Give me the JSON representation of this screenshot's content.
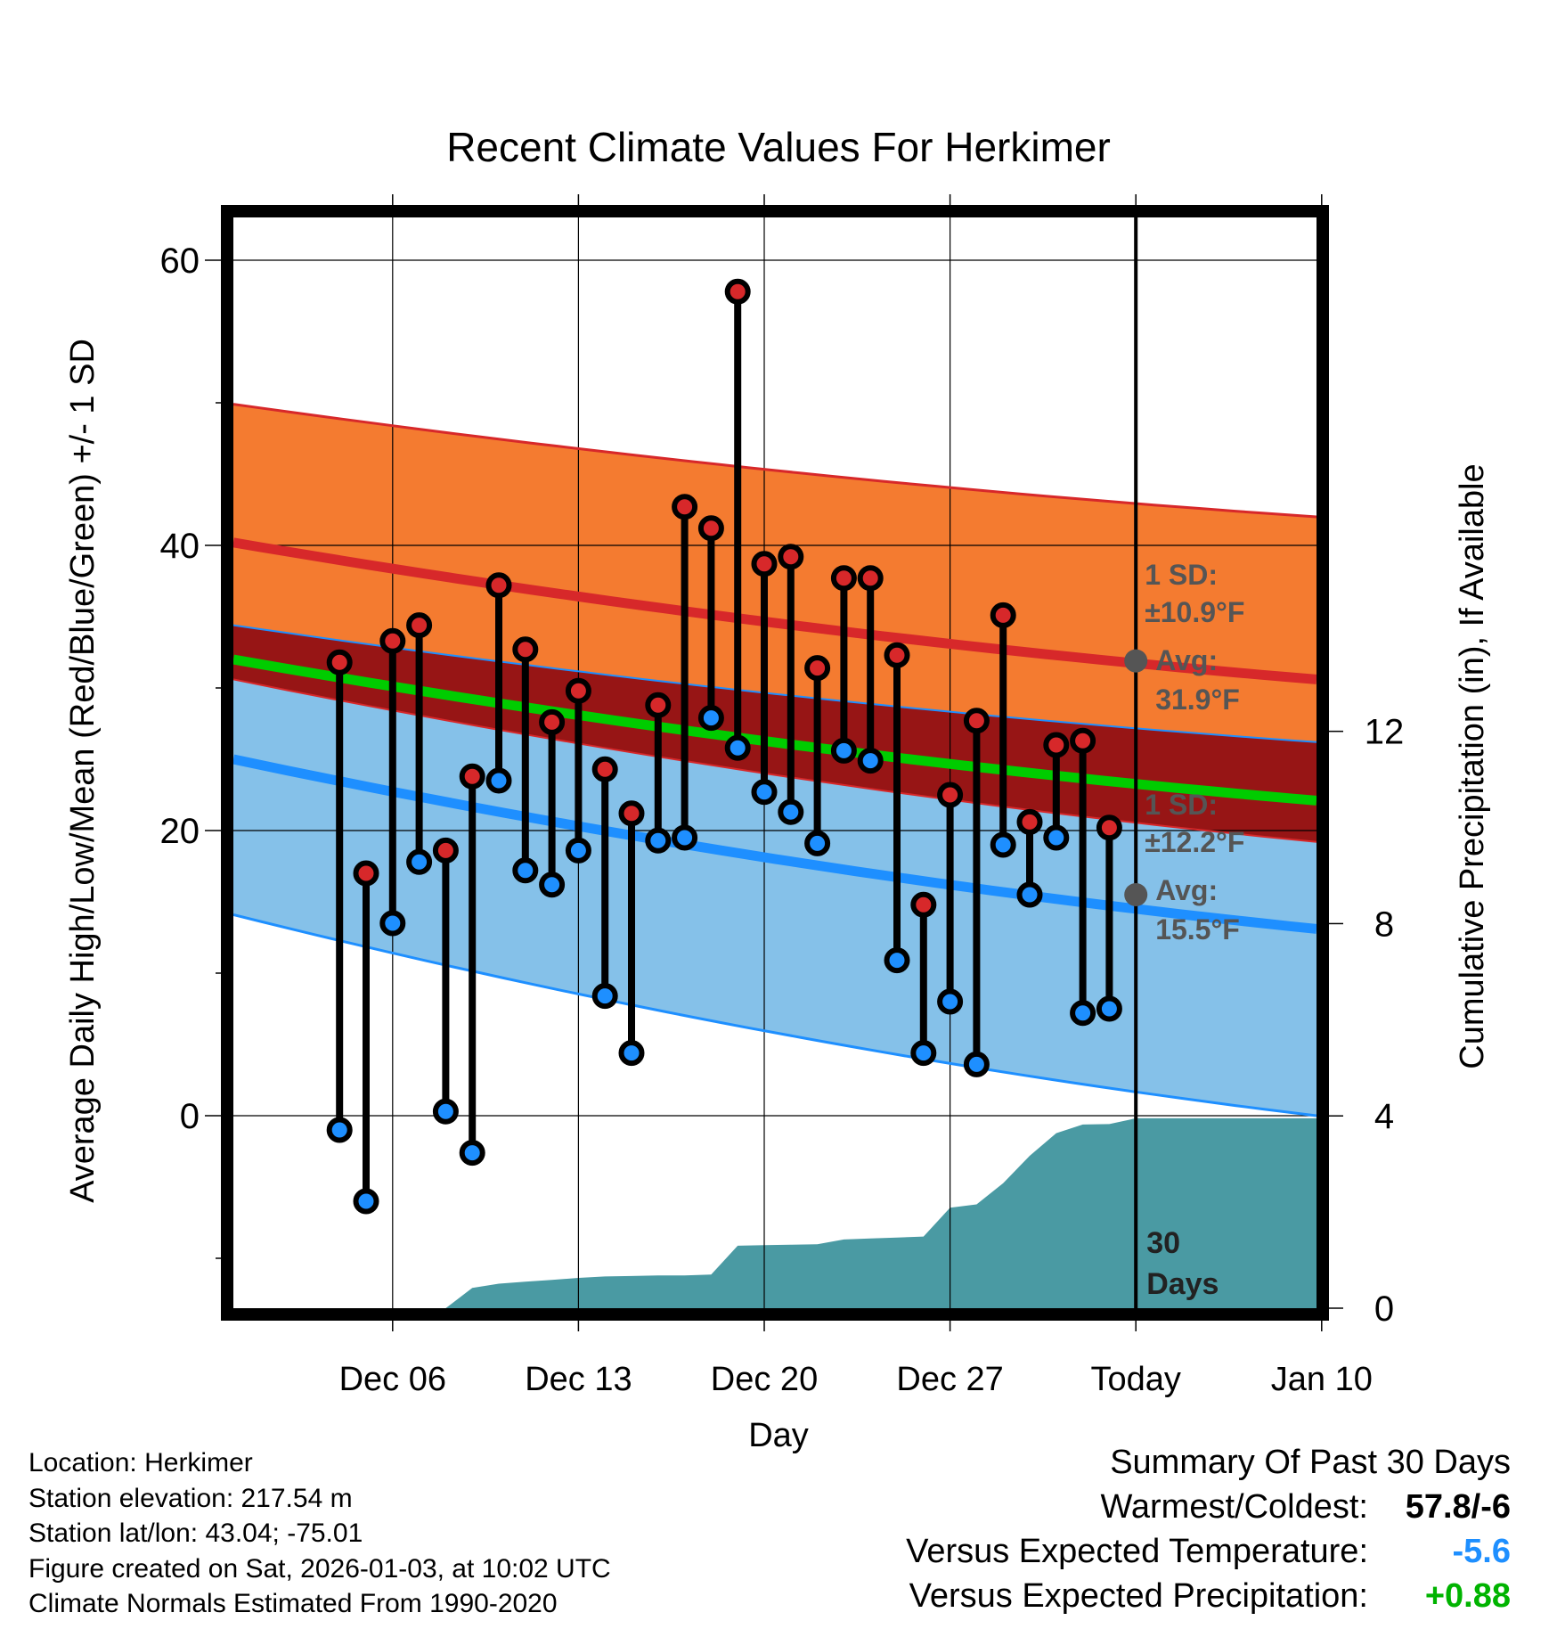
{
  "title": "Recent Climate Values For Herkimer",
  "footer": {
    "location": "Location: Herkimer",
    "elevation": "Station elevation: 217.54 m",
    "latlon": "Station lat/lon: 43.04; -75.01",
    "created": "Figure created on Sat, 2026-01-03, at 10:02 UTC",
    "normals": "Climate Normals Estimated From 1990-2020"
  },
  "summary": {
    "heading": "Summary Of Past 30 Days",
    "warmest_coldest_label": "Warmest/Coldest:",
    "warmest_coldest_value": "57.8/-6",
    "temp_label": "Versus Expected Temperature:",
    "temp_value": "-5.6",
    "temp_color": "#1e8fff",
    "precip_label": "Versus Expected Precipitation:",
    "precip_value": "+0.88",
    "precip_color": "#00b300"
  },
  "chart_data": {
    "type": "line",
    "xlabel": "Day",
    "ylabel": "Average Daily High/Low/Mean (Red/Blue/Green) +/- 1 SD",
    "y2label": "Cumulative Precipitation (in), If Available",
    "ylim": [
      -13.5,
      63
    ],
    "y2lim": [
      0,
      22.69
    ],
    "xlim": [
      -32,
      9
    ],
    "xticks": [
      {
        "day": -26,
        "label": "Dec 06"
      },
      {
        "day": -19,
        "label": "Dec 13"
      },
      {
        "day": -12,
        "label": "Dec 20"
      },
      {
        "day": -5,
        "label": "Dec 27"
      },
      {
        "day": 2,
        "label": "Today"
      },
      {
        "day": 9,
        "label": "Jan 10"
      }
    ],
    "today_day": 2,
    "yticks": [
      0,
      20,
      40,
      60
    ],
    "y2ticks": [
      0,
      4,
      8,
      12
    ],
    "high_normal": {
      "start": 40.2,
      "end": 30.6
    },
    "high_sd_upper": {
      "start": 49.9,
      "end": 42.0
    },
    "high_sd_lower": {
      "start": 34.4,
      "end": 26.2
    },
    "low_normal": {
      "start": 25.0,
      "end": 13.1
    },
    "low_sd_upper": {
      "start": 30.6,
      "end": 19.2
    },
    "low_sd_lower": {
      "start": 14.1,
      "end": 0.0
    },
    "mean_normal": {
      "start": 32.0,
      "end": 22.1
    },
    "annotations": [
      {
        "lines": [
          "1 SD:",
          "±10.9°F",
          "Avg:",
          "31.9°F"
        ],
        "marker_value": 31.9
      },
      {
        "lines": [
          "1 SD:",
          "±12.2°F",
          "Avg:",
          "15.5°F"
        ],
        "marker_value": 15.5
      }
    ],
    "days_label": [
      "30",
      "Days"
    ],
    "daily": {
      "high": [
        31.8,
        17.0,
        33.3,
        34.4,
        18.6,
        23.8,
        37.2,
        32.7,
        27.6,
        29.8,
        24.3,
        21.2,
        28.8,
        42.7,
        41.2,
        57.8,
        38.7,
        39.2,
        31.4,
        37.7,
        37.7,
        32.3,
        14.8,
        22.5,
        27.7,
        35.1,
        20.6,
        26.0,
        26.3,
        20.2
      ],
      "low": [
        -1.0,
        -6.0,
        13.5,
        17.8,
        0.3,
        -2.6,
        23.5,
        17.2,
        16.2,
        18.6,
        8.4,
        4.4,
        19.3,
        19.5,
        27.9,
        25.8,
        22.7,
        21.3,
        19.1,
        25.6,
        24.9,
        10.9,
        4.4,
        8.0,
        3.6,
        19.0,
        15.5,
        19.5,
        7.2,
        7.5
      ]
    },
    "precip_cumulative": [
      [
        -28,
        0.0
      ],
      [
        -27,
        0.0
      ],
      [
        -26,
        0.0
      ],
      [
        -25,
        0.0
      ],
      [
        -24,
        0.0
      ],
      [
        -23,
        0.42
      ],
      [
        -22,
        0.51
      ],
      [
        -21,
        0.55
      ],
      [
        -20,
        0.59
      ],
      [
        -19,
        0.63
      ],
      [
        -18,
        0.66
      ],
      [
        -17,
        0.67
      ],
      [
        -16,
        0.68
      ],
      [
        -15,
        0.68
      ],
      [
        -14,
        0.7
      ],
      [
        -13,
        1.3
      ],
      [
        -12,
        1.31
      ],
      [
        -11,
        1.32
      ],
      [
        -10,
        1.33
      ],
      [
        -9,
        1.43
      ],
      [
        -8,
        1.45
      ],
      [
        -7,
        1.47
      ],
      [
        -6,
        1.49
      ],
      [
        -5,
        2.09
      ],
      [
        -4,
        2.16
      ],
      [
        -3,
        2.6
      ],
      [
        -2,
        3.17
      ],
      [
        -1,
        3.64
      ],
      [
        0,
        3.82
      ],
      [
        1,
        3.83
      ],
      [
        2,
        3.95
      ],
      [
        3,
        3.95
      ],
      [
        4,
        3.95
      ],
      [
        5,
        3.95
      ],
      [
        6,
        3.95
      ],
      [
        7,
        3.95
      ],
      [
        8,
        3.95
      ],
      [
        9,
        3.95
      ]
    ]
  }
}
